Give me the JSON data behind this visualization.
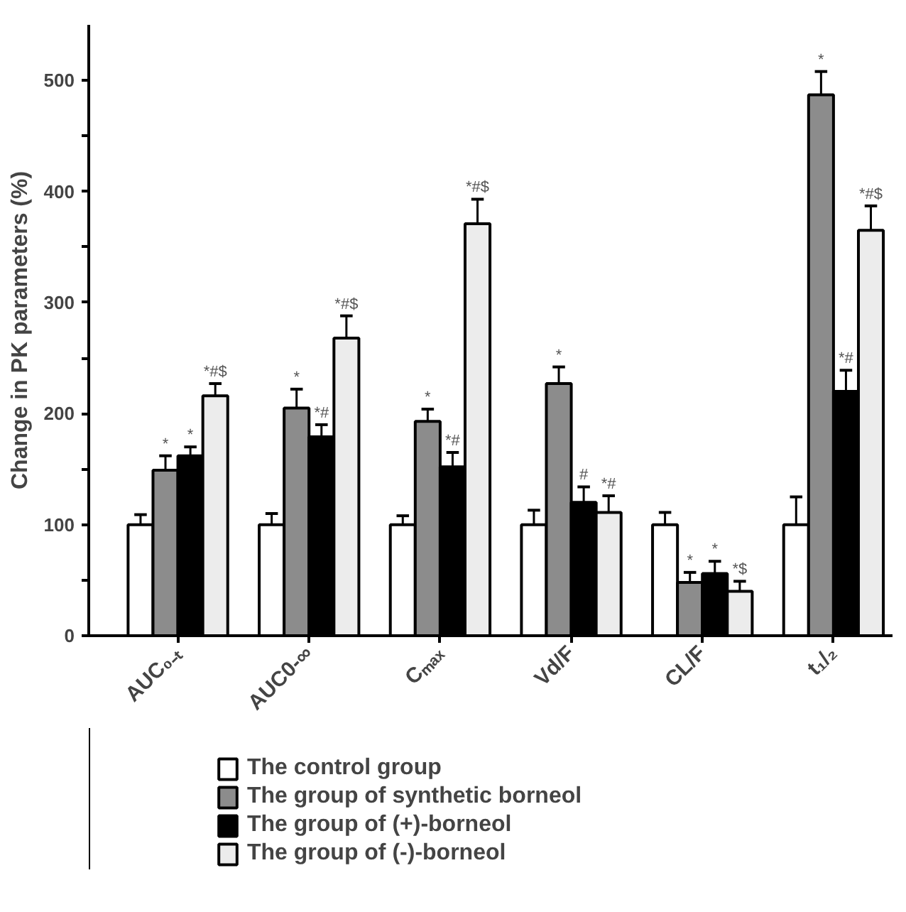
{
  "chart_data": {
    "type": "bar",
    "ylabel": "Change in PK parameters (%)",
    "categories": [
      "AUC₀₋ₜ",
      "AUC0-∞",
      "Cₘₐₓ",
      "Vd/F",
      "CL/F",
      "t₁/₂"
    ],
    "series": [
      {
        "name": "The control group",
        "color": "#ffffff",
        "values": [
          100,
          100,
          100,
          100,
          100,
          100
        ],
        "errors": [
          9,
          10,
          8,
          13,
          11,
          25
        ],
        "value_labels": [
          null,
          null,
          null,
          null,
          null,
          null
        ]
      },
      {
        "name": "The group of synthetic borneol",
        "color": "#8c8c8c",
        "values": [
          149,
          205,
          193,
          227,
          48,
          487
        ],
        "errors": [
          13,
          17,
          11,
          15,
          9,
          21
        ],
        "value_labels": [
          "*",
          "*",
          "*",
          "*",
          "*",
          "*"
        ]
      },
      {
        "name": "The group of (+)-borneol",
        "color": "#000000",
        "values": [
          162,
          179,
          152,
          120,
          56,
          220
        ],
        "errors": [
          8,
          11,
          13,
          14,
          11,
          19
        ],
        "value_labels": [
          "*",
          "*#",
          "*#",
          "#",
          "*",
          "*#"
        ]
      },
      {
        "name": "The group of (-)-borneol",
        "color": "#ececec",
        "values": [
          216,
          268,
          371,
          111,
          40,
          365
        ],
        "errors": [
          11,
          20,
          22,
          15,
          9,
          22
        ],
        "value_labels": [
          "*#$",
          "*#$",
          "*#$",
          "*#",
          "*$",
          "*#$"
        ]
      }
    ],
    "ylim": [
      0,
      550
    ],
    "yticks": [
      0,
      {
        "value": 50,
        "label": null
      },
      100,
      {
        "value": 150,
        "label": null
      },
      200,
      {
        "value": 250,
        "label": null
      },
      300,
      {
        "value": 350,
        "label": null
      },
      400,
      {
        "value": 450,
        "label": null
      },
      500
    ],
    "grid": false,
    "legend": "bottom"
  }
}
